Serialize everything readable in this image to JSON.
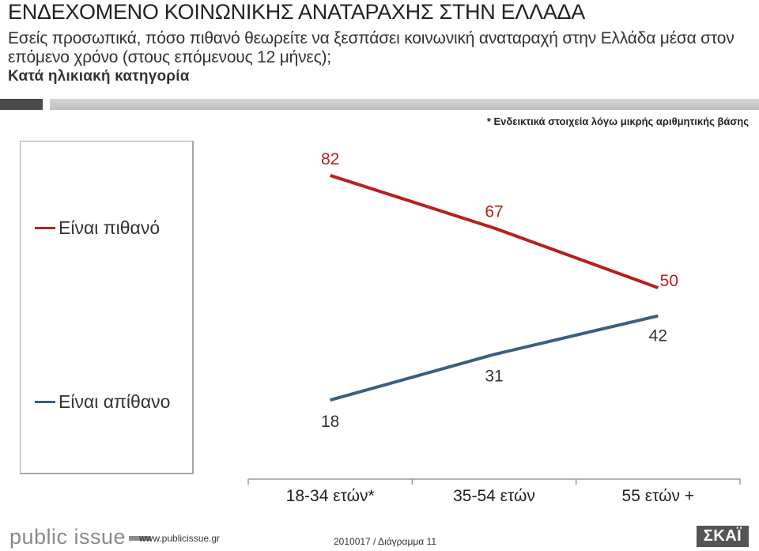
{
  "header": {
    "title": "ΕΝΔΕΧΟΜΕΝΟ ΚΟΙΝΩΝΙΚΗΣ ΑΝΑΤΑΡΑΧΗΣ ΣΤΗΝ ΕΛΛΑΔΑ",
    "subtitle": "Εσείς προσωπικά, πόσο πιθανό θεωρείτε να ξεσπάσει κοινωνική αναταραχή στην Ελλάδα μέσα στον επόμενο χρόνο (στους επόμενους 12 μήνες);",
    "group": "Κατά ηλικιακή κατηγορία"
  },
  "note": "* Ενδεικτικά στοιχεία λόγω μικρής αριθμητικής βάσης",
  "colors": {
    "likely": "#b81f1f",
    "unlikely": "#3a5f82",
    "axis": "#9a9a9a"
  },
  "chart_data": {
    "type": "line",
    "categories": [
      "18-34 ετών*",
      "35-54 ετών",
      "55 ετών +"
    ],
    "series": [
      {
        "name": "Είναι πιθανό",
        "color": "#b81f1f",
        "values": [
          82,
          67,
          50
        ]
      },
      {
        "name": "Είναι απίθανο",
        "color": "#3a5f82",
        "values": [
          18,
          31,
          42
        ]
      }
    ],
    "ylim": [
      0,
      100
    ],
    "grid": false,
    "legend_position": "left"
  },
  "footer": {
    "logo": "public issue",
    "url": "www.publicissue.gr",
    "code": "2010017 / Διάγραμμα 11",
    "brand": "ΣΚΑΪ"
  }
}
